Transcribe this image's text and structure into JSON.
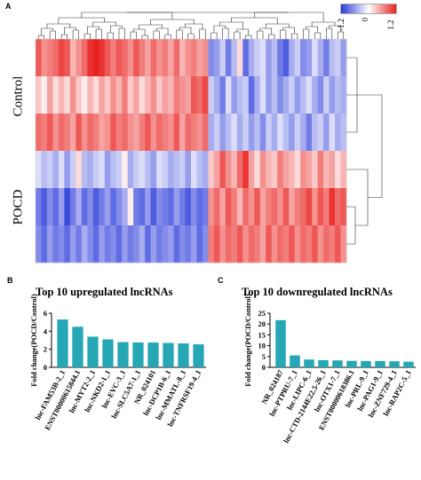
{
  "panels": {
    "a": "A",
    "b": "B",
    "c": "C"
  },
  "chart_data": [
    {
      "type": "heatmap",
      "row_groups": [
        "Control",
        "POCD"
      ],
      "legend": {
        "ticks": [
          "-1.2",
          "0",
          "1.2"
        ],
        "colors": [
          "#2b3bd9",
          "#ffffff",
          "#e8221f"
        ]
      },
      "vmin": -1.2,
      "vmax": 1.2,
      "n_up_columns": 30,
      "n_down_columns": 24,
      "values": [
        [
          0.9,
          0.6,
          0.7,
          0.8,
          1.0,
          0.9,
          0.4,
          0.6,
          0.8,
          1.1,
          1.2,
          1.1,
          0.9,
          0.7,
          0.9,
          0.8,
          0.6,
          0.9,
          0.7,
          0.5,
          0.8,
          0.6,
          0.7,
          0.5,
          0.8,
          0.4,
          0.6,
          0.7,
          0.5,
          0.6,
          -0.7,
          -0.6,
          -0.3,
          -0.8,
          -0.4,
          0.2,
          -0.9,
          -0.5,
          -0.3,
          -0.2,
          -0.6,
          -0.4,
          -0.8,
          -1.0,
          -0.5,
          -0.3,
          -0.7,
          -0.6,
          -0.2,
          -0.5,
          -0.8,
          -0.4,
          -0.3,
          -0.6
        ],
        [
          0.3,
          0.1,
          0.5,
          0.2,
          0.4,
          0.2,
          0.6,
          0.3,
          0.1,
          0.4,
          0.2,
          0.5,
          0.3,
          0.6,
          0.4,
          0.7,
          0.3,
          0.5,
          0.2,
          0.4,
          0.6,
          0.3,
          0.5,
          0.4,
          0.7,
          0.6,
          0.5,
          0.9,
          0.8,
          1.0,
          -0.3,
          -0.5,
          -0.8,
          -0.2,
          -0.6,
          -0.4,
          -0.3,
          -0.9,
          -0.5,
          -0.2,
          -0.6,
          -0.4,
          -0.7,
          -0.5,
          -0.3,
          -0.6,
          -0.4,
          -0.2,
          -0.5,
          -0.7,
          -0.3,
          -0.6,
          -0.4,
          -0.5
        ],
        [
          0.8,
          0.7,
          0.9,
          0.6,
          0.8,
          0.7,
          0.5,
          0.9,
          0.6,
          0.8,
          0.7,
          0.5,
          0.6,
          0.9,
          0.7,
          0.8,
          0.6,
          0.5,
          0.7,
          0.9,
          0.6,
          0.8,
          0.7,
          0.6,
          0.9,
          0.5,
          0.8,
          0.7,
          0.6,
          0.8,
          -0.5,
          -0.3,
          -0.6,
          -0.4,
          -0.2,
          -0.5,
          -0.3,
          -0.6,
          -0.4,
          -0.7,
          -0.3,
          -0.5,
          -0.2,
          -0.4,
          -0.6,
          -0.3,
          -0.5,
          -0.8,
          -0.4,
          -0.3,
          -0.6,
          -0.2,
          -0.5,
          -0.4
        ],
        [
          -0.2,
          -0.4,
          -0.3,
          -0.5,
          -0.2,
          -0.6,
          -0.3,
          0.2,
          -0.4,
          -0.5,
          -0.3,
          -0.2,
          -0.6,
          -0.4,
          -0.3,
          0.1,
          -0.5,
          -0.3,
          -0.2,
          -0.4,
          -0.6,
          -0.2,
          -0.3,
          -0.5,
          -0.4,
          -0.3,
          -0.6,
          -0.2,
          -0.4,
          -0.5,
          0.3,
          0.5,
          0.9,
          0.6,
          0.4,
          0.8,
          1.1,
          0.5,
          0.2,
          0.6,
          0.4,
          0.3,
          0.7,
          0.5,
          0.4,
          0.2,
          0.6,
          0.5,
          0.3,
          0.7,
          0.4,
          0.5,
          0.2,
          0.4
        ],
        [
          -0.8,
          -1.0,
          -0.7,
          -0.9,
          -0.6,
          -1.1,
          -0.8,
          -0.5,
          -0.9,
          -0.7,
          -1.0,
          -0.8,
          -0.6,
          -0.9,
          -0.7,
          -0.5,
          0.1,
          -0.8,
          -0.9,
          -0.6,
          -1.0,
          -0.7,
          -0.8,
          -0.9,
          -0.6,
          -0.8,
          -1.0,
          -0.7,
          -0.9,
          -0.8,
          0.6,
          0.8,
          0.5,
          0.9,
          0.7,
          0.4,
          0.8,
          0.6,
          0.9,
          0.5,
          0.7,
          0.8,
          0.6,
          0.9,
          0.5,
          0.7,
          0.8,
          1.0,
          0.6,
          0.9,
          0.7,
          1.1,
          0.8,
          0.9
        ],
        [
          -0.7,
          -0.9,
          -0.6,
          -0.8,
          -0.7,
          -0.9,
          -0.6,
          -0.8,
          -0.5,
          -0.7,
          -0.9,
          -0.6,
          -0.8,
          -0.7,
          -0.9,
          -0.6,
          -0.8,
          -0.7,
          -0.5,
          -0.9,
          -0.6,
          -0.8,
          -0.7,
          -0.6,
          -0.9,
          -0.7,
          -0.8,
          -0.6,
          -0.9,
          -0.7,
          0.7,
          0.9,
          0.6,
          0.8,
          0.7,
          0.9,
          0.6,
          0.8,
          0.7,
          0.5,
          0.9,
          0.6,
          0.8,
          0.7,
          0.9,
          0.6,
          0.8,
          0.7,
          0.9,
          0.6,
          0.8,
          0.7,
          0.9,
          0.6
        ]
      ]
    },
    {
      "type": "bar",
      "title": "Top 10 upregulated lncRNAs",
      "ylabel": "Fold change(POCD/Control)",
      "ylim": [
        0,
        6
      ],
      "yticks": [
        "0",
        "2",
        "4",
        "6"
      ],
      "color": "#26a7b5",
      "categories": [
        "lnc-FAM53B-2_1",
        "ENST00000615844.1",
        "lnc-MYT2-2_1",
        "lnc-NKD2-1_1",
        "lnc-EVC-3_1",
        "lnc-SLC5A7-1_1",
        "NR_024101",
        "lnc-DCP1B-6_1",
        "lnc-MMATL-8_1",
        "lnc-TNFRSF19-4_1"
      ],
      "values": [
        5.3,
        4.5,
        3.4,
        3.1,
        2.8,
        2.75,
        2.75,
        2.7,
        2.65,
        2.55
      ]
    },
    {
      "type": "bar",
      "title": "Top 10 downregulated lncRNAs",
      "ylabel": "Fold change(POCD/Control)",
      "ylim": [
        0,
        25
      ],
      "yticks": [
        "0",
        "5",
        "10",
        "15",
        "20",
        "25"
      ],
      "color": "#26a7b5",
      "categories": [
        "NR_024187",
        "lnc-PTPRU-7_1",
        "lnc-LIPC-6_1",
        "lnc-CTD-2144E22.5-26_1",
        "lnc-OTX1-7_1",
        "ENST00000618386.1",
        "lnc-PRL-9_1",
        "lnc-PAG1-9_1",
        "lnc-ZNF729-4_1",
        "lnc-RAP2C-5_1"
      ],
      "values": [
        21.8,
        5.5,
        3.6,
        3.3,
        3.2,
        3.0,
        2.9,
        2.9,
        2.8,
        2.6
      ]
    }
  ]
}
